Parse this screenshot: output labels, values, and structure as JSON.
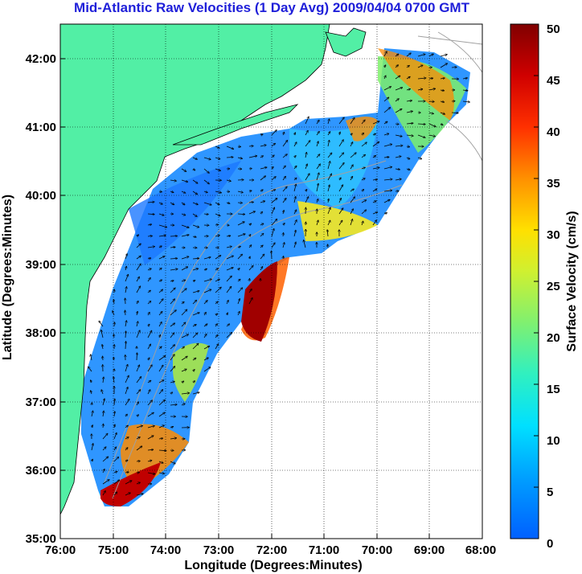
{
  "chart_data": {
    "type": "heatmap",
    "title": "Mid-Atlantic Raw Velocities (1 Day Avg) 2009/04/04 0700 GMT",
    "xlabel": "Longitude (Degrees:Minutes)",
    "ylabel": "Latitude (Degrees:Minutes)",
    "x_ticks": [
      {
        "value": -76,
        "label": "76:00"
      },
      {
        "value": -75,
        "label": "75:00"
      },
      {
        "value": -74,
        "label": "74:00"
      },
      {
        "value": -73,
        "label": "73:00"
      },
      {
        "value": -72,
        "label": "72:00"
      },
      {
        "value": -71,
        "label": "71:00"
      },
      {
        "value": -70,
        "label": "70:00"
      },
      {
        "value": -69,
        "label": "69:00"
      },
      {
        "value": -68,
        "label": "68:00"
      }
    ],
    "y_ticks": [
      {
        "value": 35,
        "label": "35:00"
      },
      {
        "value": 36,
        "label": "36:00"
      },
      {
        "value": 37,
        "label": "37:00"
      },
      {
        "value": 38,
        "label": "38:00"
      },
      {
        "value": 39,
        "label": "39:00"
      },
      {
        "value": 40,
        "label": "40:00"
      },
      {
        "value": 41,
        "label": "41:00"
      },
      {
        "value": 42,
        "label": "42:00"
      }
    ],
    "xlim": [
      -76,
      -68
    ],
    "ylim": [
      35,
      42.5
    ],
    "grid": true,
    "colorbar": {
      "label": "Surface Velocity (cm/s)",
      "range": [
        0,
        50
      ],
      "ticks": [
        "0",
        "5",
        "10",
        "15",
        "20",
        "25",
        "30",
        "35",
        "40",
        "45",
        "50"
      ],
      "colormap": "jet"
    },
    "high_velocity_regions": [
      {
        "lon": -72.8,
        "lat": 38.3,
        "speed": 48
      },
      {
        "lon": -74.7,
        "lat": 35.6,
        "speed": 45
      },
      {
        "lon": -74.3,
        "lat": 36.3,
        "speed": 40
      },
      {
        "lon": -69.0,
        "lat": 41.8,
        "speed": 42
      },
      {
        "lon": -70.1,
        "lat": 41.0,
        "speed": 38
      },
      {
        "lon": -71.6,
        "lat": 39.6,
        "speed": 30
      }
    ],
    "colors": {
      "land": "#52efa5",
      "water_background": "#ffffff",
      "title_color": "#1f1fd9",
      "contour": "#a0a0a0"
    }
  }
}
